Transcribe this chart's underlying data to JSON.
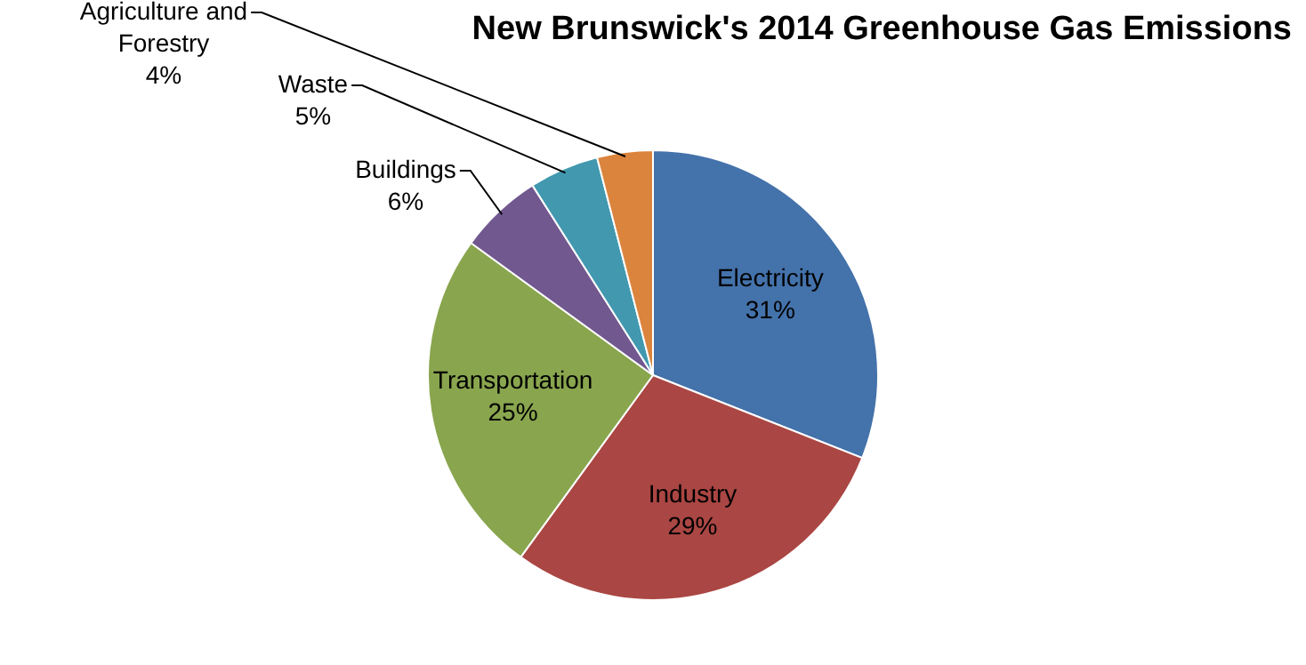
{
  "chart_data": {
    "type": "pie",
    "title": "New Brunswick's 2014 Greenhouse Gas Emissions",
    "categories": [
      "Electricity",
      "Industry",
      "Transportation",
      "Buildings",
      "Waste",
      "Agriculture and Forestry"
    ],
    "values": [
      31,
      29,
      25,
      6,
      5,
      4
    ],
    "colors": [
      "#4472aa",
      "#aa4643",
      "#89a54e",
      "#71588f",
      "#4198af",
      "#db843d"
    ],
    "value_labels": [
      "31%",
      "29%",
      "25%",
      "6%",
      "5%",
      "4%"
    ],
    "legend": false
  }
}
